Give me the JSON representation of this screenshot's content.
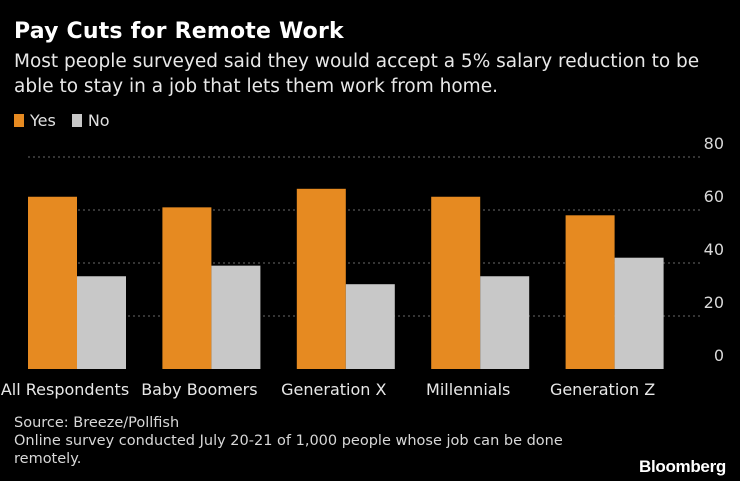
{
  "header": {
    "title": "Pay Cuts for Remote Work",
    "subtitle": "Most people surveyed said they would accept a 5% salary reduction to be able to stay in a job that lets them work from home."
  },
  "colors": {
    "yes": "#e68a21",
    "no": "#c8c8c8",
    "grid": "#6a6a6a",
    "background": "#000000"
  },
  "chart_data": {
    "type": "bar",
    "categories": [
      "All Respondents",
      "Baby Boomers",
      "Generation X",
      "Millennials",
      "Generation Z"
    ],
    "series": [
      {
        "name": "Yes",
        "values": [
          65,
          61,
          68,
          65,
          58
        ]
      },
      {
        "name": "No",
        "values": [
          35,
          39,
          32,
          35,
          42
        ]
      }
    ],
    "yticks": [
      "0",
      "20",
      "40",
      "60",
      "80"
    ],
    "ylim": [
      0,
      80
    ],
    "grid": true,
    "legend": "top-left",
    "title": "",
    "xlabel": "",
    "ylabel": ""
  },
  "footer": {
    "source": "Source: Breeze/Pollfish",
    "note": "Online survey conducted July 20-21 of 1,000 people whose job can be done remotely.",
    "logo": "Bloomberg"
  }
}
